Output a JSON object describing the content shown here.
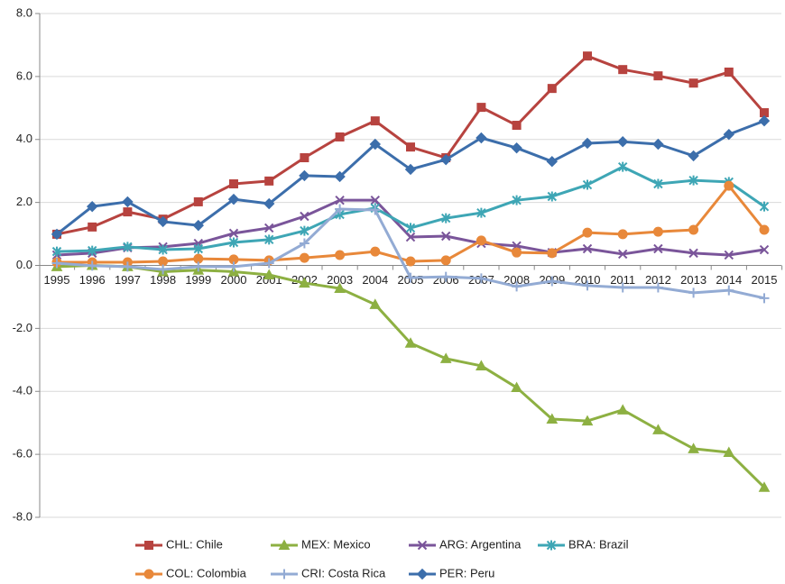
{
  "chart_data": {
    "type": "line",
    "categories": [
      "1995",
      "1996",
      "1997",
      "1998",
      "1999",
      "2000",
      "2001",
      "2002",
      "2003",
      "2004",
      "2005",
      "2006",
      "2007",
      "2008",
      "2009",
      "2010",
      "2011",
      "2012",
      "2013",
      "2014",
      "2015"
    ],
    "ylim": [
      -8,
      8
    ],
    "yticks": [
      {
        "value": 8,
        "label": "8.0"
      },
      {
        "value": 6,
        "label": "6.0"
      },
      {
        "value": 4,
        "label": "4.0"
      },
      {
        "value": 2,
        "label": "2.0"
      },
      {
        "value": 0,
        "label": "0.0"
      },
      {
        "value": -2,
        "label": "-2.0"
      },
      {
        "value": -4,
        "label": "-4.0"
      },
      {
        "value": -6,
        "label": "-6.0"
      },
      {
        "value": -8,
        "label": "-8.0"
      }
    ],
    "grid": true,
    "legend": "bottom",
    "series": [
      {
        "name": "CHL: Chile",
        "color": "#b7433f",
        "marker": "square",
        "values": [
          0.99,
          1.22,
          1.7,
          1.47,
          2.02,
          2.59,
          2.68,
          3.42,
          4.08,
          4.59,
          3.76,
          3.42,
          5.02,
          4.45,
          5.62,
          6.65,
          6.22,
          6.02,
          5.79,
          6.14,
          4.85
        ]
      },
      {
        "name": "MEX: Mexico",
        "color": "#8db042",
        "marker": "triangle",
        "values": [
          -0.04,
          0.0,
          -0.04,
          -0.2,
          -0.15,
          -0.2,
          -0.3,
          -0.56,
          -0.73,
          -1.24,
          -2.47,
          -2.96,
          -3.19,
          -3.88,
          -4.88,
          -4.94,
          -4.59,
          -5.22,
          -5.82,
          -5.94,
          -7.05
        ]
      },
      {
        "name": "ARG: Argentina",
        "color": "#7a559a",
        "marker": "x",
        "values": [
          0.33,
          0.39,
          0.56,
          0.59,
          0.7,
          1.02,
          1.19,
          1.56,
          2.07,
          2.07,
          0.9,
          0.93,
          0.7,
          0.62,
          0.41,
          0.53,
          0.36,
          0.53,
          0.39,
          0.33,
          0.5
        ]
      },
      {
        "name": "BRA: Brazil",
        "color": "#3ea6b5",
        "marker": "asterisk",
        "values": [
          0.44,
          0.47,
          0.59,
          0.5,
          0.53,
          0.73,
          0.82,
          1.1,
          1.62,
          1.82,
          1.19,
          1.5,
          1.67,
          2.07,
          2.19,
          2.56,
          3.13,
          2.59,
          2.7,
          2.65,
          1.87
        ]
      },
      {
        "name": "COL: Colombia",
        "color": "#e8883a",
        "marker": "circle",
        "values": [
          0.1,
          0.1,
          0.1,
          0.13,
          0.21,
          0.19,
          0.16,
          0.24,
          0.33,
          0.44,
          0.13,
          0.16,
          0.79,
          0.41,
          0.39,
          1.04,
          0.99,
          1.07,
          1.13,
          2.53,
          1.13
        ]
      },
      {
        "name": "CRI: Costa Rica",
        "color": "#93abd4",
        "marker": "plus",
        "values": [
          0.07,
          -0.01,
          -0.04,
          -0.13,
          -0.04,
          -0.04,
          0.07,
          0.7,
          1.79,
          1.76,
          -0.39,
          -0.36,
          -0.41,
          -0.67,
          -0.5,
          -0.64,
          -0.7,
          -0.7,
          -0.87,
          -0.79,
          -1.04
        ]
      },
      {
        "name": "PER: Peru",
        "color": "#3c6eab",
        "marker": "diamond",
        "values": [
          0.99,
          1.87,
          2.02,
          1.39,
          1.27,
          2.1,
          1.96,
          2.85,
          2.82,
          3.85,
          3.05,
          3.36,
          4.05,
          3.73,
          3.3,
          3.88,
          3.93,
          3.85,
          3.48,
          4.16,
          4.59
        ]
      }
    ]
  }
}
